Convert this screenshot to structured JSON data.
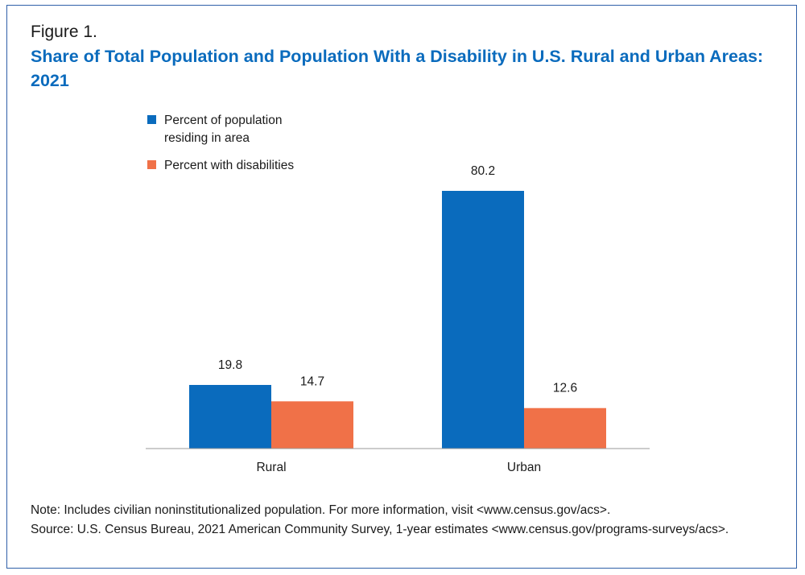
{
  "figure_label": "Figure 1.",
  "title": "Share of Total Population and Population With a Disability in U.S. Rural and Urban Areas: 2021",
  "note": "Note: Includes civilian noninstitutionalized population. For more information, visit <www.census.gov/acs>.",
  "source": "Source: U.S. Census Bureau, 2021 American Community Survey, 1-year estimates <www.census.gov/programs-surveys/acs>.",
  "colors": {
    "population": "#0a6bbd",
    "disability": "#f07148",
    "title": "#0a6bbd",
    "frame": "#2f5fa8"
  },
  "chart_data": {
    "type": "bar",
    "categories": [
      "Rural",
      "Urban"
    ],
    "series": [
      {
        "name": "Percent of population residing in area",
        "legend_lines": [
          "Percent of population",
          "residing in area"
        ],
        "values": [
          19.8,
          80.2
        ]
      },
      {
        "name": "Percent with disabilities",
        "legend_lines": [
          "Percent with disabilities"
        ],
        "values": [
          14.7,
          12.6
        ]
      }
    ],
    "value_labels": [
      [
        "19.8",
        "80.2"
      ],
      [
        "14.7",
        "12.6"
      ]
    ],
    "title": "Share of Total Population and Population With a Disability in U.S. Rural and Urban Areas: 2021",
    "xlabel": "",
    "ylabel": "",
    "ylim": [
      0,
      100
    ],
    "grid": false,
    "legend": "top-left"
  }
}
